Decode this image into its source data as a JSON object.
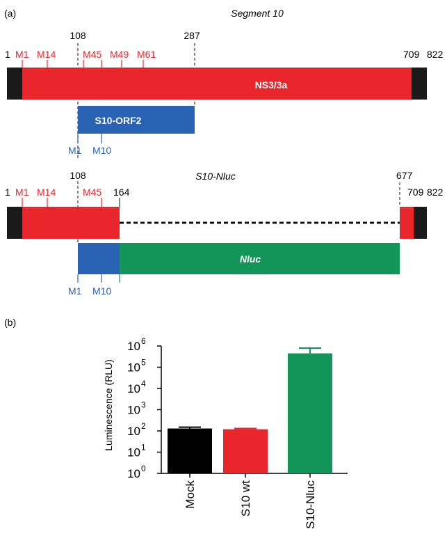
{
  "panel_a": {
    "label": "(a)",
    "top": {
      "title": "Segment 10",
      "numbers": {
        "n1": "1",
        "n108": "108",
        "n287": "287",
        "n709": "709",
        "n822": "822"
      },
      "red_markers": [
        "M1",
        "M14",
        "M45",
        "M49",
        "M61"
      ],
      "bar_label": "NS3/3a",
      "orf_label": "S10-ORF2",
      "blue_markers": [
        "M1",
        "M10"
      ]
    },
    "bottom": {
      "title": "S10-Nluc",
      "numbers": {
        "n1": "1",
        "n108": "108",
        "n164": "164",
        "n677": "677",
        "n709": "709",
        "n822": "822"
      },
      "red_markers": [
        "M1",
        "M14",
        "M45"
      ],
      "nluc_label": "Nluc",
      "blue_markers": [
        "M1",
        "M10"
      ]
    }
  },
  "panel_b": {
    "label": "(b)",
    "chart_data": {
      "type": "bar",
      "categories": [
        "Mock",
        "S10 wt",
        "S10-Nluc"
      ],
      "values": [
        130,
        120,
        450000
      ],
      "error_upper": [
        150,
        130,
        800000
      ],
      "ylabel": "Luminescence (RLU)",
      "yscale": "log",
      "ylim": [
        1,
        1000000
      ],
      "yticks": [
        {
          "base": "10",
          "exp": "0"
        },
        {
          "base": "10",
          "exp": "1"
        },
        {
          "base": "10",
          "exp": "2"
        },
        {
          "base": "10",
          "exp": "3"
        },
        {
          "base": "10",
          "exp": "4"
        },
        {
          "base": "10",
          "exp": "5"
        },
        {
          "base": "10",
          "exp": "6"
        }
      ],
      "colors": [
        "#000000",
        "#e8262b",
        "#13955a"
      ]
    }
  },
  "colors": {
    "red": "#e8262b",
    "blue": "#2a62b4",
    "green": "#13955a",
    "dark": "#1a1a1a"
  }
}
